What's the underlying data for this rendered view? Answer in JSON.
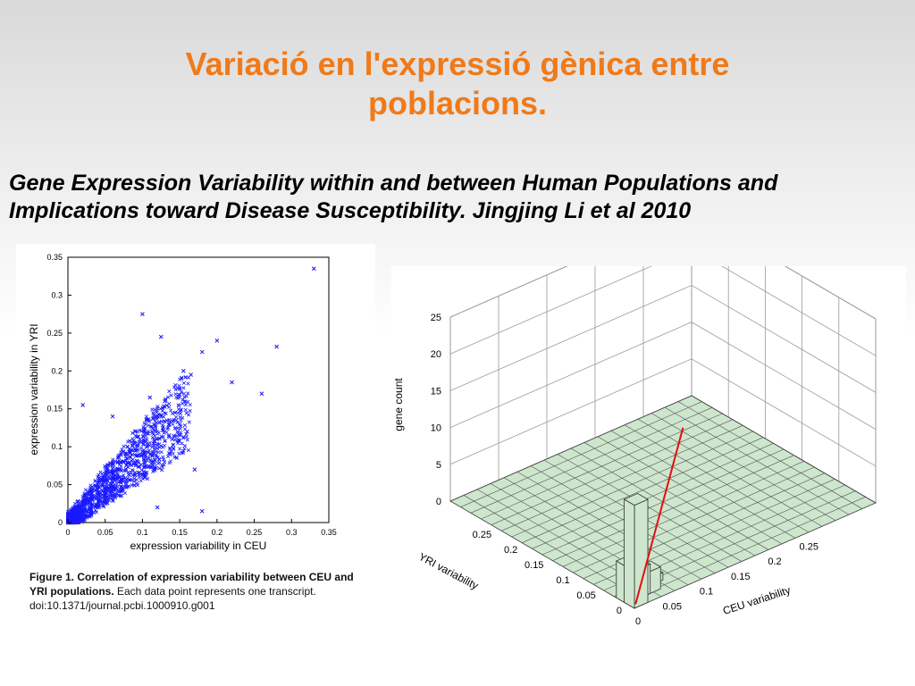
{
  "slide": {
    "title_line1": "Variació en l'expressió gènica entre",
    "title_line2": "poblacions.",
    "subtitle_line1": "Gene Expression Variability within and between Human Populations and",
    "subtitle_line2": "Implications toward Disease Susceptibility. Jingjing Li et al 2010"
  },
  "caption": {
    "bold": "Figure 1. Correlation of expression variability between CEU and YRI populations.",
    "text": " Each data point represents one transcript.",
    "doi": "doi:10.1371/journal.pcbi.1000910.g001"
  },
  "colors": {
    "title": "#f07a19",
    "points": "#1a1aff",
    "bars": "#cde6cd",
    "fit_line": "#e01010"
  },
  "chart_data": [
    {
      "type": "scatter",
      "title": "",
      "xlabel": "expression variability in CEU",
      "ylabel": "expression variability in YRI",
      "xlim": [
        0,
        0.35
      ],
      "ylim": [
        0,
        0.35
      ],
      "xticks": [
        "0",
        "0.05",
        "0.1",
        "0.15",
        "0.2",
        "0.25",
        "0.3",
        "0.35"
      ],
      "yticks": [
        "0",
        "0.05",
        "0.1",
        "0.15",
        "0.2",
        "0.25",
        "0.3",
        "0.35"
      ],
      "marker": "x",
      "grid": false,
      "points": [
        [
          0.33,
          0.335
        ],
        [
          0.1,
          0.275
        ],
        [
          0.125,
          0.245
        ],
        [
          0.2,
          0.24
        ],
        [
          0.18,
          0.225
        ],
        [
          0.28,
          0.232
        ],
        [
          0.155,
          0.2
        ],
        [
          0.165,
          0.195
        ],
        [
          0.22,
          0.185
        ],
        [
          0.26,
          0.17
        ],
        [
          0.11,
          0.165
        ],
        [
          0.13,
          0.16
        ],
        [
          0.02,
          0.155
        ],
        [
          0.06,
          0.14
        ],
        [
          0.15,
          0.13
        ],
        [
          0.12,
          0.14
        ],
        [
          0.09,
          0.12
        ],
        [
          0.045,
          0.055
        ],
        [
          0.07,
          0.08
        ],
        [
          0.03,
          0.04
        ],
        [
          0.08,
          0.1
        ],
        [
          0.1,
          0.09
        ],
        [
          0.05,
          0.03
        ],
        [
          0.01,
          0.02
        ],
        [
          0.14,
          0.11
        ],
        [
          0.16,
          0.12
        ],
        [
          0.17,
          0.07
        ],
        [
          0.18,
          0.015
        ],
        [
          0.12,
          0.02
        ],
        [
          0.07,
          0.06
        ]
      ]
    },
    {
      "type": "bar",
      "subtype": "3d-histogram",
      "title": "",
      "xlabel": "CEU variability",
      "ylabel": "YRI variability",
      "zlabel": "gene count",
      "xticks": [
        "0",
        "0.05",
        "0.1",
        "0.15",
        "0.2",
        "0.25"
      ],
      "yticks": [
        "0",
        "0.05",
        "0.1",
        "0.15",
        "0.2",
        "0.25"
      ],
      "zticks": [
        "0",
        "5",
        "10",
        "15",
        "20",
        "25"
      ],
      "zlim": [
        0,
        25
      ],
      "bins": [
        {
          "ceu": 0.0,
          "yri": 0.0,
          "count": 14
        },
        {
          "ceu": 0.0,
          "yri": 0.015,
          "count": 5
        },
        {
          "ceu": 0.015,
          "yri": 0.015,
          "count": 4
        },
        {
          "ceu": 0.03,
          "yri": 0.03,
          "count": 2
        },
        {
          "ceu": 0.03,
          "yri": 0.015,
          "count": 3
        },
        {
          "ceu": 0.045,
          "yri": 0.03,
          "count": 1
        }
      ],
      "fit_line": true
    }
  ]
}
